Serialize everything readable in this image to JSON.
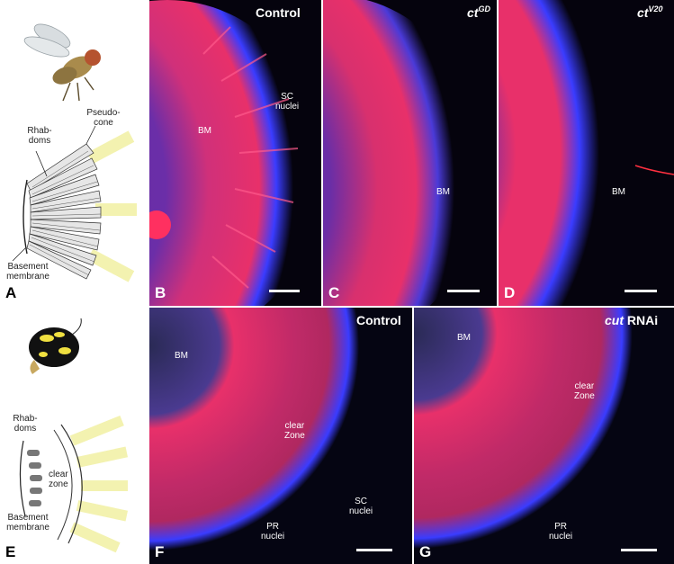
{
  "panels": {
    "A": {
      "letter": "A",
      "labels": {
        "rhabdoms": "Rhab-\ndoms",
        "pseudocone": "Pseudo-\ncone",
        "basement": "Basement\nmembrane"
      }
    },
    "B": {
      "letter": "B",
      "title": "Control",
      "labels": {
        "bm": "BM",
        "sc": "SC\nnuclei"
      }
    },
    "C": {
      "letter": "C",
      "title_main": "ct",
      "title_sup": "GD",
      "labels": {
        "bm": "BM"
      }
    },
    "D": {
      "letter": "D",
      "title_main": "ct",
      "title_sup": "V20",
      "labels": {
        "bm": "BM"
      }
    },
    "E": {
      "letter": "E",
      "labels": {
        "rhabdoms": "Rhab-\ndoms",
        "clear": "clear\nzone",
        "basement": "Basement\nmembrane"
      }
    },
    "F": {
      "letter": "F",
      "title": "Control",
      "labels": {
        "bm": "BM",
        "clear": "clear\nZone",
        "sc": "SC\nnuclei",
        "pr": "PR\nnuclei"
      }
    },
    "G": {
      "letter": "G",
      "title_main": "cut",
      "title_rest": " RNAi",
      "labels": {
        "bm": "BM",
        "clear": "clear\nZone",
        "pr": "PR\nnuclei"
      }
    }
  },
  "colors": {
    "red": "#e8306a",
    "blue": "#3a3cff",
    "pale_yellow": "#f3f2b0"
  }
}
